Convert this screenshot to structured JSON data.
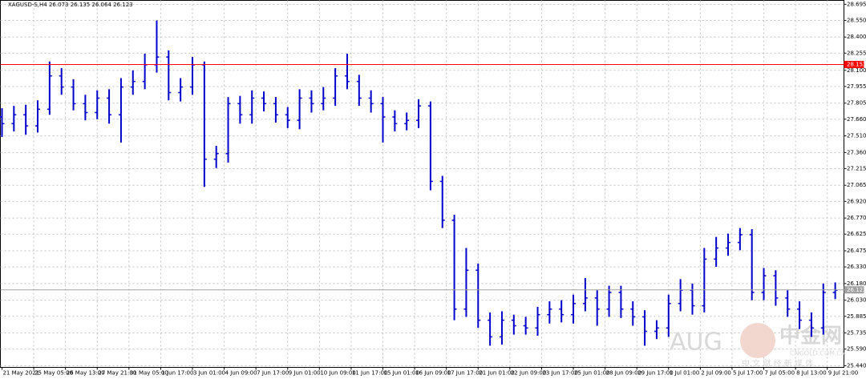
{
  "chart_data": {
    "type": "ohlc",
    "title": "XAGUSD-S,H4  26.073 26.135 26.064 26.123",
    "xlim": [
      -0.4,
      212.2
    ],
    "ylim": [
      25.425,
      28.73
    ],
    "grid": true,
    "xticks": [
      {
        "value": 0,
        "label": "21 May 2021"
      },
      {
        "value": 8,
        "label": "25 May 05:00"
      },
      {
        "value": 16,
        "label": "26 May 13:00"
      },
      {
        "value": 24,
        "label": "27 May 21:00"
      },
      {
        "value": 32,
        "label": "31 May 05:00"
      },
      {
        "value": 40,
        "label": "1 Jun 17:00"
      },
      {
        "value": 48,
        "label": "3 Jun 01:00"
      },
      {
        "value": 56,
        "label": "4 Jun 09:00"
      },
      {
        "value": 64,
        "label": "7 Jun 17:00"
      },
      {
        "value": 72,
        "label": "9 Jun 01:00"
      },
      {
        "value": 80,
        "label": "10 Jun 09:00"
      },
      {
        "value": 88,
        "label": "11 Jun 17:00"
      },
      {
        "value": 96,
        "label": "15 Jun 01:00"
      },
      {
        "value": 104,
        "label": "16 Jun 09:00"
      },
      {
        "value": 112,
        "label": "17 Jun 17:00"
      },
      {
        "value": 120,
        "label": "21 Jun 01:00"
      },
      {
        "value": 128,
        "label": "22 Jun 09:00"
      },
      {
        "value": 136,
        "label": "23 Jun 17:00"
      },
      {
        "value": 144,
        "label": "25 Jun 01:00"
      },
      {
        "value": 152,
        "label": "28 Jun 09:00"
      },
      {
        "value": 160,
        "label": "29 Jun 17:00"
      },
      {
        "value": 168,
        "label": "1 Jul 01:00"
      },
      {
        "value": 176,
        "label": "2 Jul 09:00"
      },
      {
        "value": 184,
        "label": "5 Jul 17:00"
      },
      {
        "value": 192,
        "label": "7 Jul 05:00"
      },
      {
        "value": 200,
        "label": "8 Jul 13:00"
      },
      {
        "value": 208,
        "label": "9 Jul 21:00"
      }
    ],
    "yticks": [
      {
        "value": 28.695,
        "label": "28.695"
      },
      {
        "value": 28.55,
        "label": "28.550"
      },
      {
        "value": 28.4,
        "label": "28.400"
      },
      {
        "value": 28.255,
        "label": "28.255"
      },
      {
        "value": 28.1,
        "label": "28.100"
      },
      {
        "value": 27.955,
        "label": "27.955"
      },
      {
        "value": 27.805,
        "label": "27.805"
      },
      {
        "value": 27.66,
        "label": "27.660"
      },
      {
        "value": 27.51,
        "label": "27.510"
      },
      {
        "value": 27.36,
        "label": "27.360"
      },
      {
        "value": 27.215,
        "label": "27.215"
      },
      {
        "value": 27.065,
        "label": "27.065"
      },
      {
        "value": 26.92,
        "label": "26.920"
      },
      {
        "value": 26.77,
        "label": "26.770"
      },
      {
        "value": 26.625,
        "label": "26.625"
      },
      {
        "value": 26.475,
        "label": "26.475"
      },
      {
        "value": 26.33,
        "label": "26.330"
      },
      {
        "value": 26.18,
        "label": "26.180"
      },
      {
        "value": 26.03,
        "label": "26.030"
      },
      {
        "value": 25.885,
        "label": "25.885"
      },
      {
        "value": 25.735,
        "label": "25.735"
      },
      {
        "value": 25.59,
        "label": "25.590"
      },
      {
        "value": 25.44,
        "label": "25.440"
      }
    ],
    "price_lines": [
      {
        "value": 28.153,
        "color": "#ff0000"
      },
      {
        "value": 26.123,
        "color": "#a0a0a0"
      }
    ],
    "series": [
      {
        "color": "#0000cc",
        "x": [
          0,
          3,
          6,
          9,
          12,
          15,
          18,
          21,
          24,
          27,
          30,
          33,
          36,
          39,
          42,
          45,
          48,
          51,
          54,
          57,
          60,
          63,
          66,
          69,
          72,
          75,
          78,
          81,
          84,
          87,
          90,
          93,
          96,
          99,
          102,
          105,
          108,
          111,
          114,
          117,
          120,
          123,
          126,
          129,
          132,
          135,
          138,
          141,
          144,
          147,
          150,
          153,
          156,
          159,
          162,
          165,
          168,
          171,
          174,
          177,
          180,
          183,
          186,
          189,
          192,
          195,
          198,
          201,
          204,
          207,
          210
        ],
        "open": [
          27.68,
          27.62,
          27.7,
          27.6,
          27.75,
          28.05,
          27.95,
          27.8,
          27.72,
          27.85,
          27.7,
          27.95,
          28.0,
          28.15,
          28.22,
          27.9,
          27.95,
          28.15,
          27.3,
          27.35,
          27.8,
          27.7,
          27.85,
          27.8,
          27.7,
          27.65,
          27.85,
          27.8,
          27.85,
          28.05,
          28.0,
          27.85,
          27.8,
          27.68,
          27.62,
          27.65,
          27.78,
          27.1,
          26.75,
          25.95,
          26.3,
          25.85,
          25.7,
          25.85,
          25.8,
          25.78,
          25.9,
          25.95,
          25.9,
          26.0,
          26.05,
          25.95,
          26.1,
          25.95,
          25.88,
          25.75,
          25.78,
          26.0,
          26.12,
          25.98,
          26.4,
          26.5,
          26.55,
          26.62,
          26.1,
          26.25,
          26.05,
          25.95,
          25.85,
          25.78,
          26.1
        ],
        "high": [
          27.76,
          27.78,
          27.79,
          27.83,
          28.18,
          28.12,
          28.02,
          27.88,
          27.92,
          27.93,
          28.03,
          28.1,
          28.25,
          28.55,
          28.28,
          28.03,
          28.22,
          28.18,
          27.42,
          27.86,
          27.87,
          27.92,
          27.91,
          27.86,
          27.77,
          27.93,
          27.92,
          27.95,
          28.12,
          28.25,
          28.06,
          27.92,
          27.86,
          27.74,
          27.72,
          27.84,
          27.82,
          27.15,
          26.8,
          26.5,
          26.36,
          25.92,
          25.93,
          25.9,
          25.88,
          25.97,
          26.02,
          26.03,
          26.08,
          26.23,
          26.12,
          26.16,
          26.16,
          26.02,
          25.94,
          25.85,
          26.08,
          26.22,
          26.18,
          26.5,
          26.6,
          26.63,
          26.68,
          26.67,
          26.32,
          26.3,
          26.12,
          26.02,
          25.92,
          26.18,
          26.19
        ],
        "low": [
          27.5,
          27.55,
          27.52,
          27.54,
          27.7,
          27.88,
          27.74,
          27.65,
          27.66,
          27.62,
          27.45,
          27.88,
          27.93,
          28.08,
          27.83,
          27.82,
          27.88,
          27.05,
          27.22,
          27.27,
          27.62,
          27.62,
          27.73,
          27.63,
          27.58,
          27.57,
          27.72,
          27.74,
          27.78,
          27.93,
          27.78,
          27.72,
          27.45,
          27.55,
          27.56,
          27.58,
          27.02,
          26.68,
          25.85,
          25.88,
          25.78,
          25.62,
          25.63,
          25.72,
          25.72,
          25.71,
          25.82,
          25.83,
          25.82,
          25.93,
          25.8,
          25.88,
          25.87,
          25.8,
          25.62,
          25.68,
          25.7,
          25.93,
          25.9,
          25.92,
          26.33,
          26.43,
          26.48,
          26.03,
          26.03,
          25.98,
          25.88,
          25.77,
          25.7,
          25.72,
          26.04
        ],
        "close": [
          27.62,
          27.7,
          27.6,
          27.75,
          28.05,
          27.95,
          27.8,
          27.72,
          27.85,
          27.7,
          27.95,
          28.0,
          28.15,
          28.22,
          27.9,
          27.95,
          28.15,
          27.3,
          27.35,
          27.8,
          27.7,
          27.85,
          27.8,
          27.7,
          27.65,
          27.85,
          27.8,
          27.85,
          28.05,
          28.0,
          27.85,
          27.8,
          27.68,
          27.62,
          27.65,
          27.78,
          27.1,
          26.75,
          25.95,
          26.3,
          25.85,
          25.7,
          25.85,
          25.8,
          25.78,
          25.9,
          25.95,
          25.9,
          26.0,
          26.05,
          25.95,
          26.1,
          25.95,
          25.88,
          25.75,
          25.78,
          26.0,
          26.12,
          25.98,
          26.4,
          26.5,
          26.55,
          26.62,
          26.1,
          26.25,
          26.05,
          25.95,
          25.85,
          25.78,
          26.1,
          26.12
        ]
      }
    ],
    "watermark": {
      "brand": "AUG",
      "site": "中金网",
      "domain": "CNGOLD.COM.CN",
      "slogan": "中 文 财 经 新 媒 体"
    }
  }
}
